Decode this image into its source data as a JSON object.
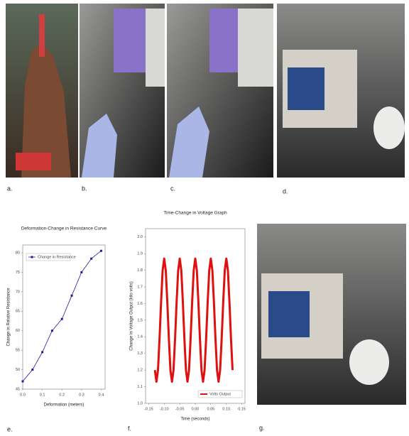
{
  "labels": [
    "a.",
    "b.",
    "c.",
    "d.",
    "e.",
    "f.",
    "g."
  ],
  "chart_data": [
    {
      "type": "line",
      "title": "Deformation-Change in Resistance Curve",
      "x_label": "Deformation (meters)",
      "y_label": "Change in Relative Resistance",
      "x": [
        0,
        0.05,
        0.1,
        0.15,
        0.2,
        0.25,
        0.3,
        0.35,
        0.4
      ],
      "series": [
        {
          "name": "Change in Resistance",
          "color": "#1f1f8f",
          "values": [
            47,
            50,
            54.5,
            60,
            63,
            69,
            75,
            78.5,
            80.5
          ]
        }
      ],
      "marker": "square",
      "legend": "upper left",
      "xlim": [
        0,
        0.42
      ],
      "xticks": [
        {
          "value": 0,
          "label": "0.0"
        },
        0.1,
        0.2,
        0.3,
        0.4
      ],
      "ylim": [
        45,
        82
      ],
      "yticks": [
        45,
        50,
        55,
        60,
        65,
        70,
        75,
        80
      ]
    },
    {
      "type": "line",
      "title": "Time-Change in Voltage Graph",
      "x_label": "Time (seconds)",
      "y_label": "Change in Voltage Output (kilo volts)",
      "x": [
        -0.13,
        -0.125,
        -0.12,
        -0.115,
        -0.11,
        -0.105,
        -0.1,
        -0.095,
        -0.09,
        -0.085,
        -0.08,
        -0.075,
        -0.07,
        -0.065,
        -0.06,
        -0.055,
        -0.05,
        -0.045,
        -0.04,
        -0.035,
        -0.03,
        -0.025,
        -0.02,
        -0.015,
        -0.01,
        -0.005,
        0,
        0.005,
        0.01,
        0.015,
        0.02,
        0.025,
        0.03,
        0.035,
        0.04,
        0.045,
        0.05,
        0.055,
        0.06,
        0.065,
        0.07,
        0.075,
        0.08,
        0.085,
        0.09,
        0.095,
        0.1,
        0.105,
        0.11,
        0.115,
        0.12
      ],
      "series": [
        {
          "name": "Volts Output",
          "color": "#e01010",
          "values": [
            1.2,
            1.13,
            1.2,
            1.39,
            1.61,
            1.8,
            1.87,
            1.8,
            1.61,
            1.39,
            1.2,
            1.13,
            1.2,
            1.39,
            1.61,
            1.8,
            1.87,
            1.8,
            1.61,
            1.39,
            1.2,
            1.13,
            1.2,
            1.39,
            1.61,
            1.8,
            1.87,
            1.8,
            1.61,
            1.39,
            1.2,
            1.13,
            1.2,
            1.39,
            1.61,
            1.8,
            1.87,
            1.8,
            1.61,
            1.39,
            1.2,
            1.13,
            1.2,
            1.39,
            1.61,
            1.8,
            1.87,
            1.8,
            1.61,
            1.39,
            1.2
          ]
        }
      ],
      "marker": "none",
      "legend": "lower right",
      "xlim": [
        -0.16,
        0.16
      ],
      "xticks": [
        -0.15,
        {
          "value": -0.1,
          "label": "-0.10"
        },
        -0.05,
        {
          "value": 0,
          "label": "0.00"
        },
        0.05,
        {
          "value": 0.1,
          "label": "0.10"
        },
        0.15
      ],
      "ylim": [
        1.0,
        2.05
      ],
      "yticks": [
        {
          "value": 1,
          "label": "1.0"
        },
        1.1,
        1.2,
        1.3,
        1.4,
        1.5,
        1.6,
        1.7,
        1.8,
        1.9,
        {
          "value": 2,
          "label": "2.0"
        }
      ]
    }
  ]
}
